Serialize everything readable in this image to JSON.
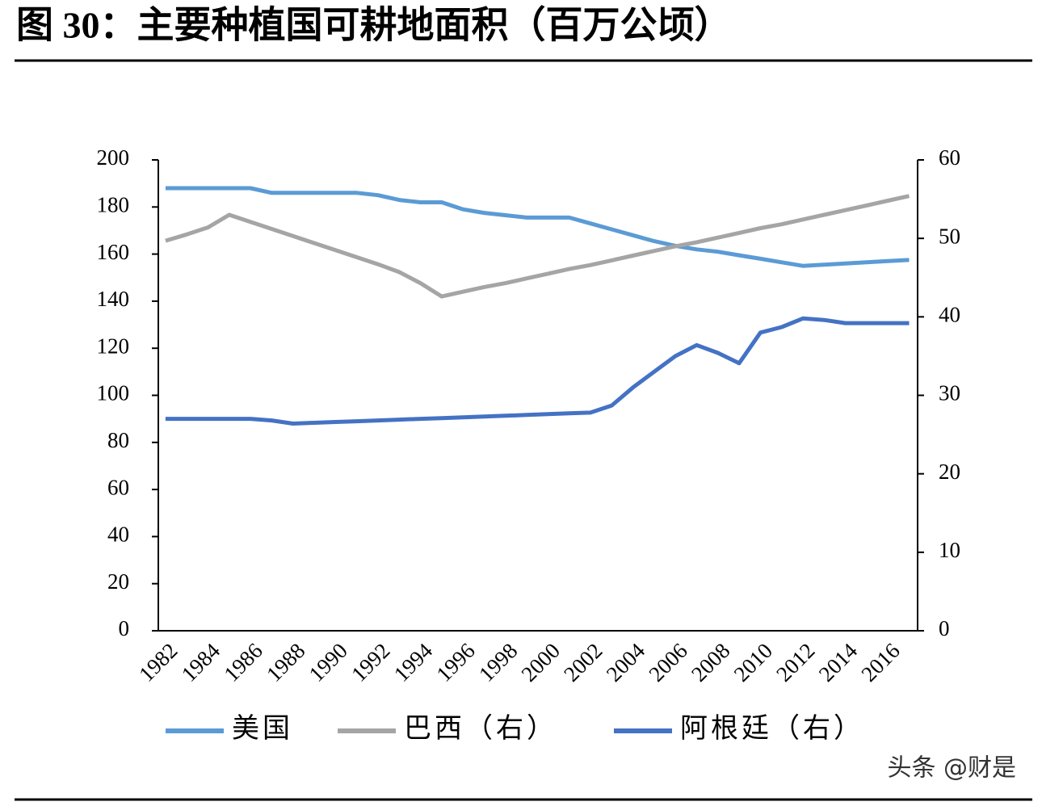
{
  "chart_data": {
    "type": "line",
    "title": "图 30：主要种植国可耕地面积（百万公顷）",
    "watermark": "头条 @财是",
    "x": [
      1982,
      1983,
      1984,
      1985,
      1986,
      1987,
      1988,
      1989,
      1990,
      1991,
      1992,
      1993,
      1994,
      1995,
      1996,
      1997,
      1998,
      1999,
      2000,
      2001,
      2002,
      2003,
      2004,
      2005,
      2006,
      2007,
      2008,
      2009,
      2010,
      2011,
      2012,
      2013,
      2014,
      2015,
      2016,
      2017
    ],
    "xlim": [
      1981.66,
      2017.4
    ],
    "xticks": [
      1982,
      1984,
      1986,
      1988,
      1990,
      1992,
      1994,
      1996,
      1998,
      2000,
      2002,
      2004,
      2006,
      2008,
      2010,
      2012,
      2014,
      2016
    ],
    "ylim": [
      0,
      200
    ],
    "yticks": [
      0,
      20,
      40,
      60,
      80,
      100,
      120,
      140,
      160,
      180,
      200
    ],
    "y2lim": [
      0,
      60
    ],
    "y2ticks": [
      0,
      10,
      20,
      30,
      40,
      50,
      60
    ],
    "legend": "bottom",
    "series": [
      {
        "name": "美国",
        "color": "#5b9bd5",
        "values": [
          188,
          188,
          188,
          188,
          188,
          186,
          186,
          186,
          186,
          186,
          185,
          183,
          182,
          182,
          179,
          177.5,
          176.5,
          175.5,
          175.5,
          175.5,
          173,
          170.5,
          168,
          165.5,
          163.5,
          162,
          161,
          159.5,
          158,
          156.5,
          155,
          155.5,
          156,
          156.5,
          157,
          157.5
        ]
      },
      {
        "name": "巴西（右）",
        "color": "#a5a5a5",
        "axis": "y2",
        "values": [
          49.7,
          50.5,
          51.4,
          53.0,
          52.1,
          51.2,
          50.3,
          49.4,
          48.5,
          47.6,
          46.7,
          45.7,
          44.3,
          42.6,
          43.2,
          43.8,
          44.3,
          44.9,
          45.5,
          46.1,
          46.6,
          47.2,
          47.8,
          48.4,
          49.0,
          49.5,
          50.1,
          50.7,
          51.3,
          51.8,
          52.4,
          53.0,
          53.6,
          54.2,
          54.8,
          55.4
        ]
      },
      {
        "name": "阿根廷（右）",
        "color": "#4472c4",
        "axis": "y2",
        "values": [
          27.0,
          27.0,
          27.0,
          27.0,
          27.0,
          26.8,
          26.4,
          26.5,
          26.6,
          26.7,
          26.8,
          26.9,
          27.0,
          27.1,
          27.2,
          27.3,
          27.4,
          27.5,
          27.6,
          27.7,
          27.8,
          28.7,
          31.0,
          33.0,
          35.0,
          36.4,
          35.4,
          34.1,
          38.0,
          38.7,
          39.8,
          39.6,
          39.2,
          39.2,
          39.2,
          39.2
        ]
      }
    ]
  }
}
